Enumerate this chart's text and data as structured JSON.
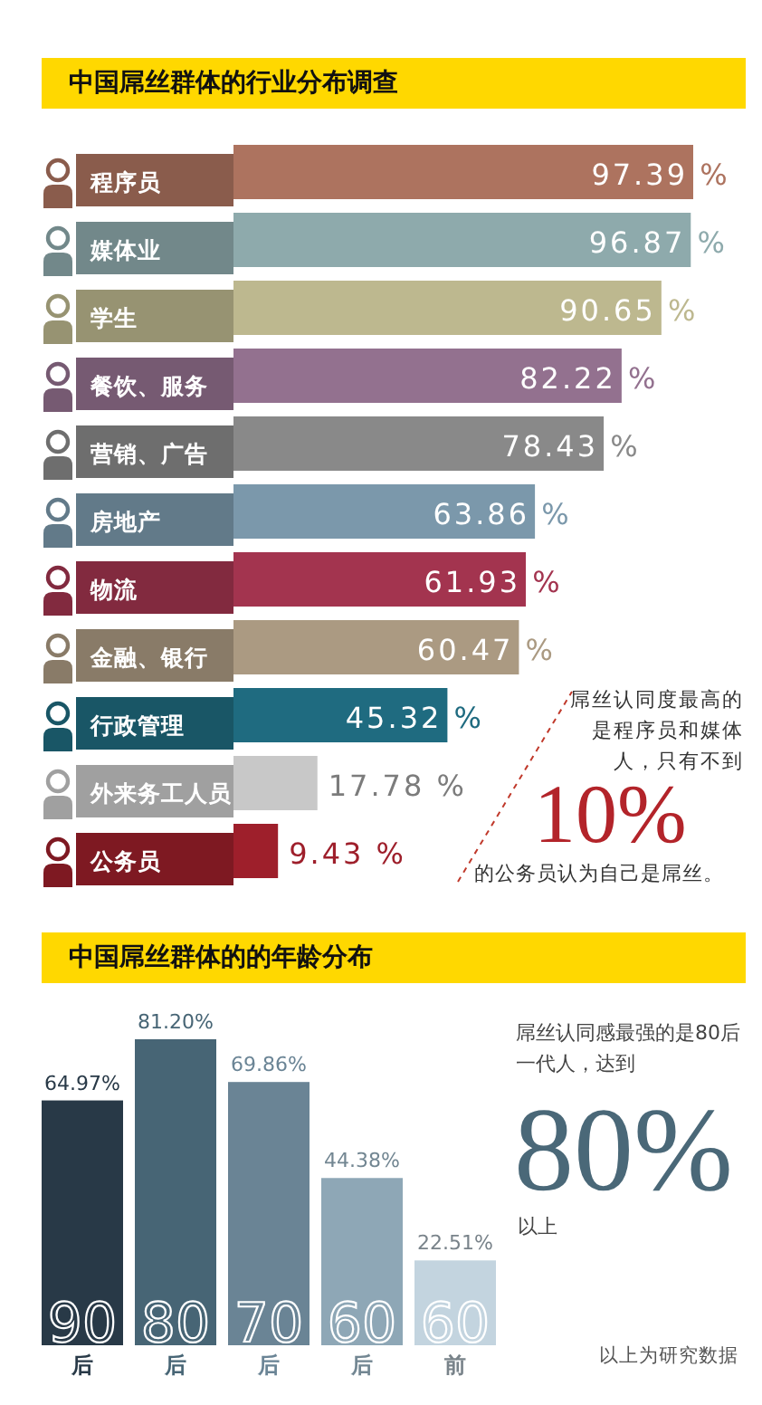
{
  "chart_data": [
    {
      "type": "bar",
      "orientation": "horizontal",
      "title": "中国屌丝群体的行业分布调查",
      "categories": [
        "程序员",
        "媒体业",
        "学生",
        "餐饮、服务",
        "营销、广告",
        "房地产",
        "物流",
        "金融、银行",
        "行政管理",
        "外来务工人员",
        "公务员"
      ],
      "values": [
        97.39,
        96.87,
        90.65,
        82.22,
        78.43,
        63.86,
        61.93,
        60.47,
        45.32,
        17.78,
        9.43
      ],
      "value_labels": [
        "97.39 %",
        "96.87 %",
        "90.65 %",
        "82.22 %",
        "78.43 %",
        "63.86 %",
        "61.93 %",
        "60.47 %",
        "45.32 %",
        "17.78 %",
        "9.43 %"
      ],
      "colors": [
        "#ad735f",
        "#8eaaac",
        "#bdb88f",
        "#93718f",
        "#898989",
        "#7b98ab",
        "#a3344f",
        "#ab9a82",
        "#1f6b80",
        "#c8c8c8",
        "#9e1f2b"
      ],
      "annotations": [
        "屌丝认同度最高的是程序员和媒体人，只有不到",
        "10%",
        "的公务员认为自己是屌丝。"
      ]
    },
    {
      "type": "bar",
      "title": "中国屌丝群体的的年龄分布",
      "categories": [
        "90后",
        "80后",
        "70后",
        "60后",
        "60前"
      ],
      "values": [
        64.97,
        81.2,
        69.86,
        44.38,
        22.51
      ],
      "value_labels": [
        "64.97%",
        "81.20%",
        "69.86%",
        "44.38%",
        "22.51%"
      ],
      "colors": [
        "#283947",
        "#476575",
        "#6a8495",
        "#8ea7b6",
        "#c3d4df"
      ],
      "annotations": [
        "屌丝认同感最强的是80后一代人，达到",
        "80%",
        "以上",
        "以上为研究数据"
      ]
    }
  ]
}
